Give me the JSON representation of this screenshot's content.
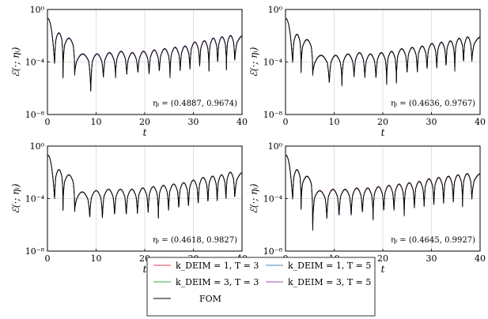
{
  "chart_data": {
    "type": "line",
    "shared": {
      "xlabel": "t",
      "ylabel": "ℰ(·; ηᵢ)",
      "xlim": [
        0,
        40
      ],
      "ylim_log10": [
        -8,
        0
      ],
      "x_ticks": [
        0,
        10,
        20,
        30,
        40
      ],
      "y_ticks": [
        "10⁰",
        "10⁻⁴",
        "10⁻⁸"
      ],
      "y_tick_exponents": [
        0,
        -4,
        -8
      ],
      "log_scale_y": true,
      "grid": true,
      "legend_position": "bottom-center",
      "legend_columns": 2
    },
    "series_styles": [
      {
        "name": "k_DEIM = 1, T = 3",
        "color": "#d9414e"
      },
      {
        "name": "k_DEIM = 1, T = 5",
        "color": "#4d86b5"
      },
      {
        "name": "k_DEIM = 3, T = 3",
        "color": "#37a447"
      },
      {
        "name": "k_DEIM = 3, T = 5",
        "color": "#9f4fb3"
      },
      {
        "name": "FOM",
        "color": "#000000"
      }
    ],
    "legend_entries": [
      {
        "label": "k_DEIM = 1, T = 3",
        "color": "#d9414e"
      },
      {
        "label": "k_DEIM = 1, T = 5",
        "color": "#4d86b5"
      },
      {
        "label": "k_DEIM = 3, T = 3",
        "color": "#37a447"
      },
      {
        "label": "k_DEIM = 3, T = 5",
        "color": "#9f4fb3"
      },
      {
        "label": "FOM",
        "color": "#000000"
      }
    ],
    "panels": [
      {
        "annotation": "ηᵢ = (0.4887, 0.9674)",
        "start_log10": -0.7,
        "dips": [
          1.5,
          3.2,
          5.6,
          8.9,
          11.5,
          14.0,
          16.3,
          18.6,
          20.9,
          23.0,
          25.2,
          27.3,
          29.3,
          31.3,
          33.2,
          35.0,
          36.8,
          38.5
        ],
        "dip_depth_log10": [
          -4.3,
          -5.2,
          -5.0,
          -7.0,
          -5.6,
          -5.2,
          -5.3,
          -5.2,
          -5.3,
          -5.1,
          -5.2,
          -5.1,
          -5.0,
          -4.8,
          -4.7,
          -4.7,
          -4.6,
          -4.4
        ],
        "peak_log10": [
          -1.2,
          -1.8,
          -2.2,
          -3.4,
          -3.4,
          -3.3,
          -3.2,
          -3.3,
          -3.2,
          -3.1,
          -3.0,
          -2.9,
          -2.8,
          -2.5,
          -2.4,
          -2.2,
          -2.1,
          -2.0
        ]
      },
      {
        "annotation": "ηᵢ = (0.4636, 0.9767)",
        "start_log10": -0.7,
        "dips": [
          1.5,
          3.2,
          5.6,
          9.0,
          11.6,
          14.1,
          16.3,
          18.6,
          20.8,
          22.8,
          25.0,
          27.1,
          29.1,
          31.1,
          33.0,
          34.8,
          36.6,
          38.3
        ],
        "dip_depth_log10": [
          -4.2,
          -4.8,
          -5.0,
          -6.2,
          -5.8,
          -5.5,
          -5.6,
          -5.8,
          -5.7,
          -5.6,
          -5.4,
          -5.3,
          -5.0,
          -5.0,
          -4.9,
          -4.7,
          -4.6,
          -4.3
        ],
        "peak_log10": [
          -1.2,
          -1.9,
          -2.3,
          -3.5,
          -3.5,
          -3.4,
          -3.3,
          -3.4,
          -3.3,
          -3.2,
          -3.0,
          -2.9,
          -2.8,
          -2.6,
          -2.5,
          -2.4,
          -2.2,
          -2.1
        ]
      },
      {
        "annotation": "ηᵢ = (0.4618, 0.9827)",
        "start_log10": -0.7,
        "dips": [
          1.5,
          3.2,
          5.6,
          8.7,
          11.3,
          13.8,
          16.2,
          18.5,
          20.7,
          22.8,
          24.9,
          27.0,
          29.0,
          31.0,
          33.0,
          34.9,
          36.7,
          38.5
        ],
        "dip_depth_log10": [
          -4.2,
          -4.9,
          -5.0,
          -5.9,
          -6.0,
          -5.8,
          -5.8,
          -5.6,
          -5.6,
          -5.5,
          -5.4,
          -5.3,
          -5.2,
          -5.0,
          -4.9,
          -4.7,
          -4.6,
          -4.4
        ],
        "peak_log10": [
          -1.2,
          -1.8,
          -2.2,
          -3.5,
          -3.4,
          -3.3,
          -3.3,
          -3.3,
          -3.2,
          -3.1,
          -3.0,
          -2.9,
          -2.8,
          -2.6,
          -2.4,
          -2.3,
          -2.2,
          -2.0
        ]
      },
      {
        "annotation": "ηᵢ = (0.4645, 0.9927)",
        "start_log10": -0.7,
        "dips": [
          1.5,
          3.2,
          5.6,
          8.5,
          11.0,
          13.5,
          15.8,
          18.0,
          20.2,
          22.3,
          24.4,
          26.5,
          28.5,
          30.5,
          32.5,
          34.5,
          36.4,
          38.3
        ],
        "dip_depth_log10": [
          -4.2,
          -4.8,
          -6.4,
          -6.0,
          -5.9,
          -5.8,
          -5.6,
          -5.6,
          -5.5,
          -5.4,
          -5.3,
          -5.2,
          -5.1,
          -5.0,
          -4.9,
          -4.8,
          -4.6,
          -4.4
        ],
        "peak_log10": [
          -1.2,
          -1.8,
          -2.3,
          -3.4,
          -3.3,
          -3.3,
          -3.2,
          -3.2,
          -3.1,
          -3.0,
          -2.9,
          -2.8,
          -2.7,
          -2.5,
          -2.4,
          -2.3,
          -2.2,
          -2.1
        ]
      }
    ]
  }
}
